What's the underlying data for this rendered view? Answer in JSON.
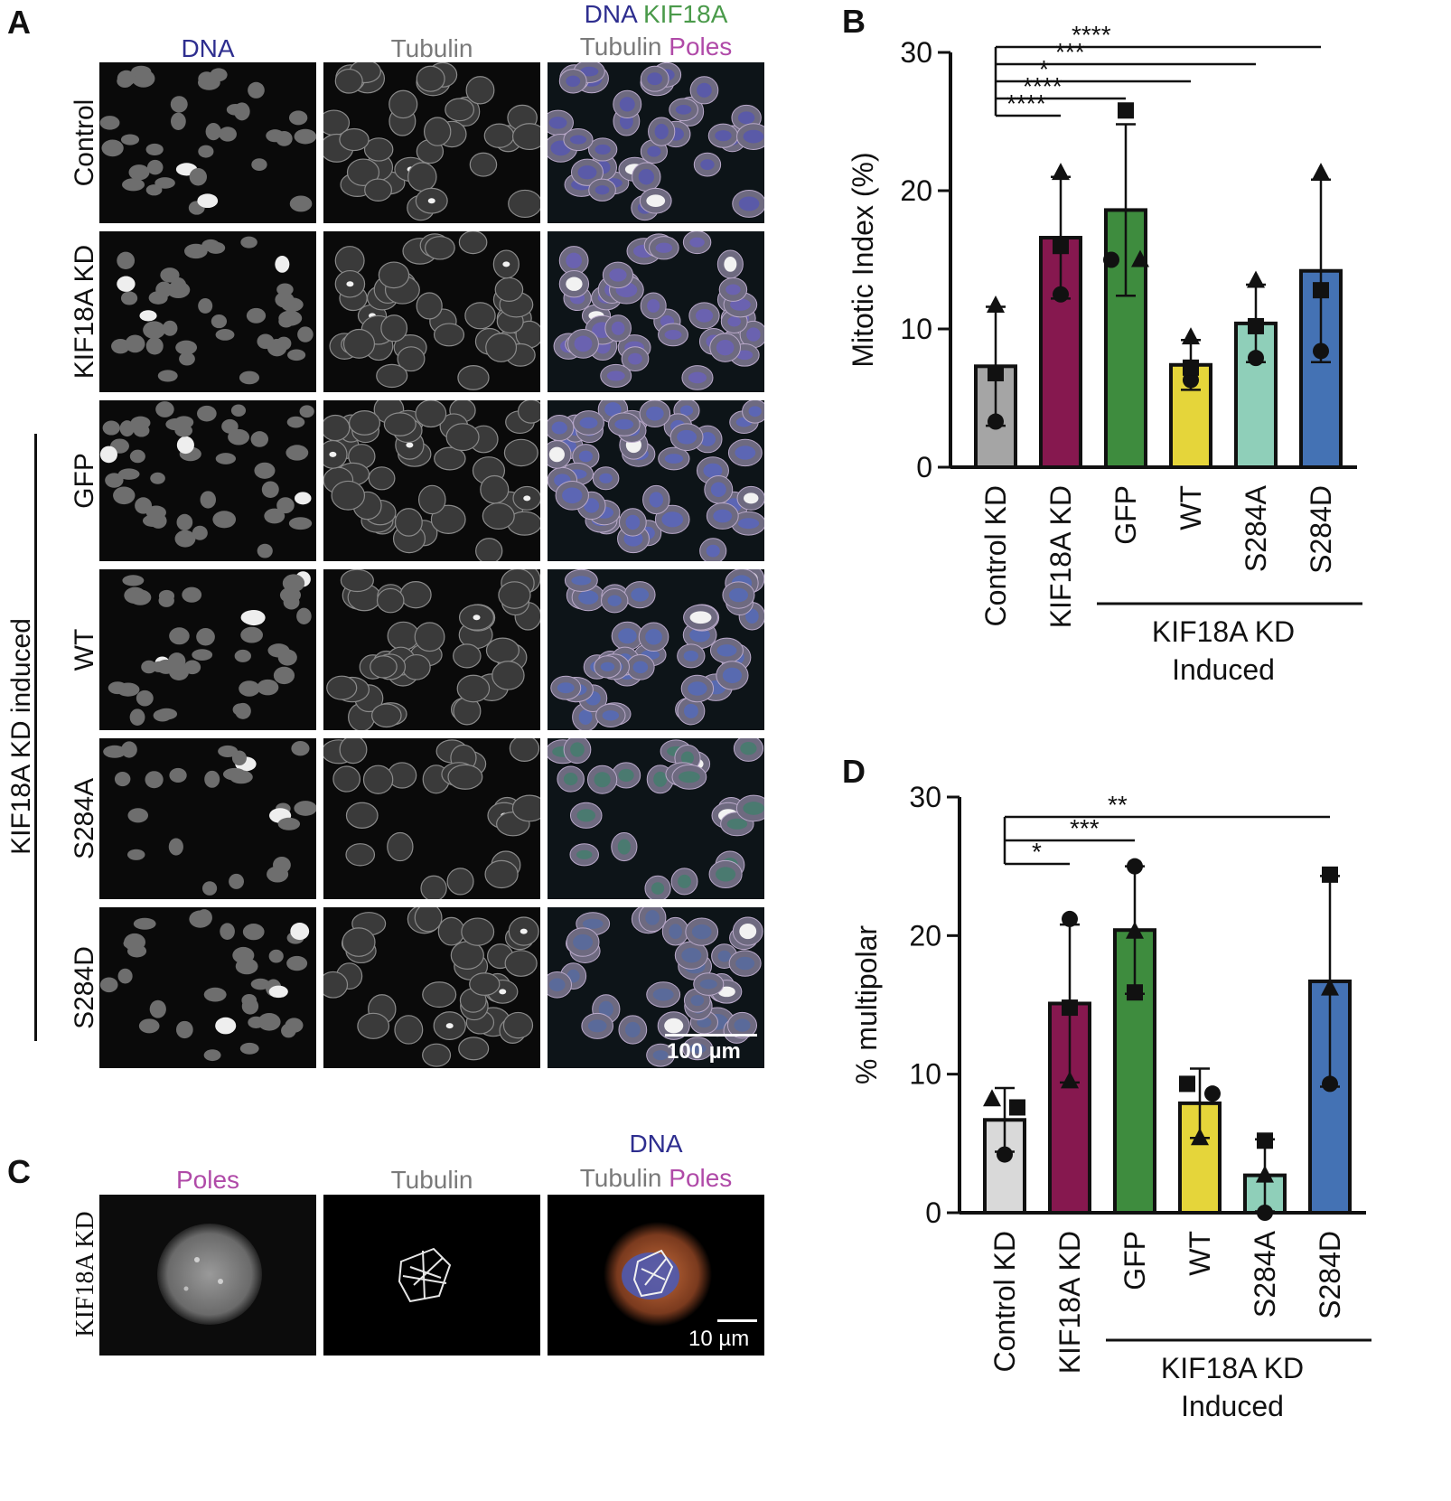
{
  "panelA": {
    "letter": "A",
    "col_headers": {
      "dna": "DNA",
      "tubulin": "Tubulin",
      "merge_line1_a": "DNA",
      "merge_line1_b": "KIF18A",
      "merge_line2_a": "Tubulin",
      "merge_line2_b": "Poles"
    },
    "rows": [
      "Control",
      "KIF18A KD",
      "GFP",
      "WT",
      "S284A",
      "S284D"
    ],
    "group_label": "KIF18A KD induced",
    "scale_bar": "100 µm"
  },
  "panelC": {
    "letter": "C",
    "col_headers": {
      "poles": "Poles",
      "tubulin": "Tubulin",
      "merge_line1": "DNA",
      "merge_line2_a": "Tubulin",
      "merge_line2_b": "Poles"
    },
    "row_label": "KIF18A KD",
    "scale_bar": "10 µm"
  },
  "colors": {
    "control": "#a5a5a5",
    "control_d": "#d9d9d9",
    "kif18a": "#86184f",
    "gfp": "#3e8c3e",
    "wt": "#e5d53a",
    "s284a": "#8fcfb9",
    "s284d": "#4472b4"
  },
  "chart_data": [
    {
      "panel": "B",
      "type": "bar",
      "ylabel": "Mitotic Index (%)",
      "ylim": [
        0,
        30
      ],
      "yticks": [
        0,
        10,
        20,
        30
      ],
      "categories": [
        "Control KD",
        "KIF18A KD",
        "GFP",
        "WT",
        "S284A",
        "S284D"
      ],
      "group_label_line1": "KIF18A KD",
      "group_label_line2": "Induced",
      "means": [
        7.3,
        16.6,
        18.6,
        7.4,
        10.4,
        14.2
      ],
      "sd": [
        4.3,
        4.4,
        6.2,
        1.8,
        2.8,
        6.6
      ],
      "points": [
        {
          "circle": 3.3,
          "square": 6.8,
          "triangle": 11.7
        },
        {
          "circle": 12.5,
          "square": 16.0,
          "triangle": 21.3
        },
        {
          "circle": 15.0,
          "square": 25.8,
          "triangle": 15.0
        },
        {
          "circle": 6.3,
          "square": 7.2,
          "triangle": 9.4
        },
        {
          "circle": 7.9,
          "square": 10.2,
          "triangle": 13.5
        },
        {
          "circle": 8.4,
          "square": 12.8,
          "triangle": 21.3
        }
      ],
      "significance": [
        {
          "to": "KIF18A KD",
          "stars": "****"
        },
        {
          "to": "GFP",
          "stars": "****"
        },
        {
          "to": "WT",
          "stars": "*"
        },
        {
          "to": "S284A",
          "stars": "***"
        },
        {
          "to": "S284D",
          "stars": "****"
        }
      ]
    },
    {
      "panel": "D",
      "type": "bar",
      "ylabel": "% multipolar",
      "ylim": [
        0,
        30
      ],
      "yticks": [
        0,
        10,
        20,
        30
      ],
      "categories": [
        "Control KD",
        "KIF18A KD",
        "GFP",
        "WT",
        "S284A",
        "S284D"
      ],
      "group_label_line1": "KIF18A KD",
      "group_label_line2": "Induced",
      "means": [
        6.7,
        15.1,
        20.4,
        7.9,
        2.7,
        16.7
      ],
      "sd": [
        2.3,
        5.7,
        4.6,
        2.5,
        2.6,
        7.6
      ],
      "points": [
        {
          "circle": 4.2,
          "square": 7.6,
          "triangle": 8.2
        },
        {
          "circle": 21.2,
          "square": 14.8,
          "triangle": 9.5
        },
        {
          "circle": 25.0,
          "square": 15.9,
          "triangle": 20.3
        },
        {
          "circle": 8.6,
          "square": 9.3,
          "triangle": 5.4
        },
        {
          "circle": 0.0,
          "square": 5.2,
          "triangle": 2.7
        },
        {
          "circle": 9.3,
          "square": 24.4,
          "triangle": 16.2
        }
      ],
      "significance": [
        {
          "to": "KIF18A KD",
          "stars": "*"
        },
        {
          "to": "GFP",
          "stars": "***"
        },
        {
          "to": "S284D",
          "stars": "**"
        }
      ]
    }
  ]
}
